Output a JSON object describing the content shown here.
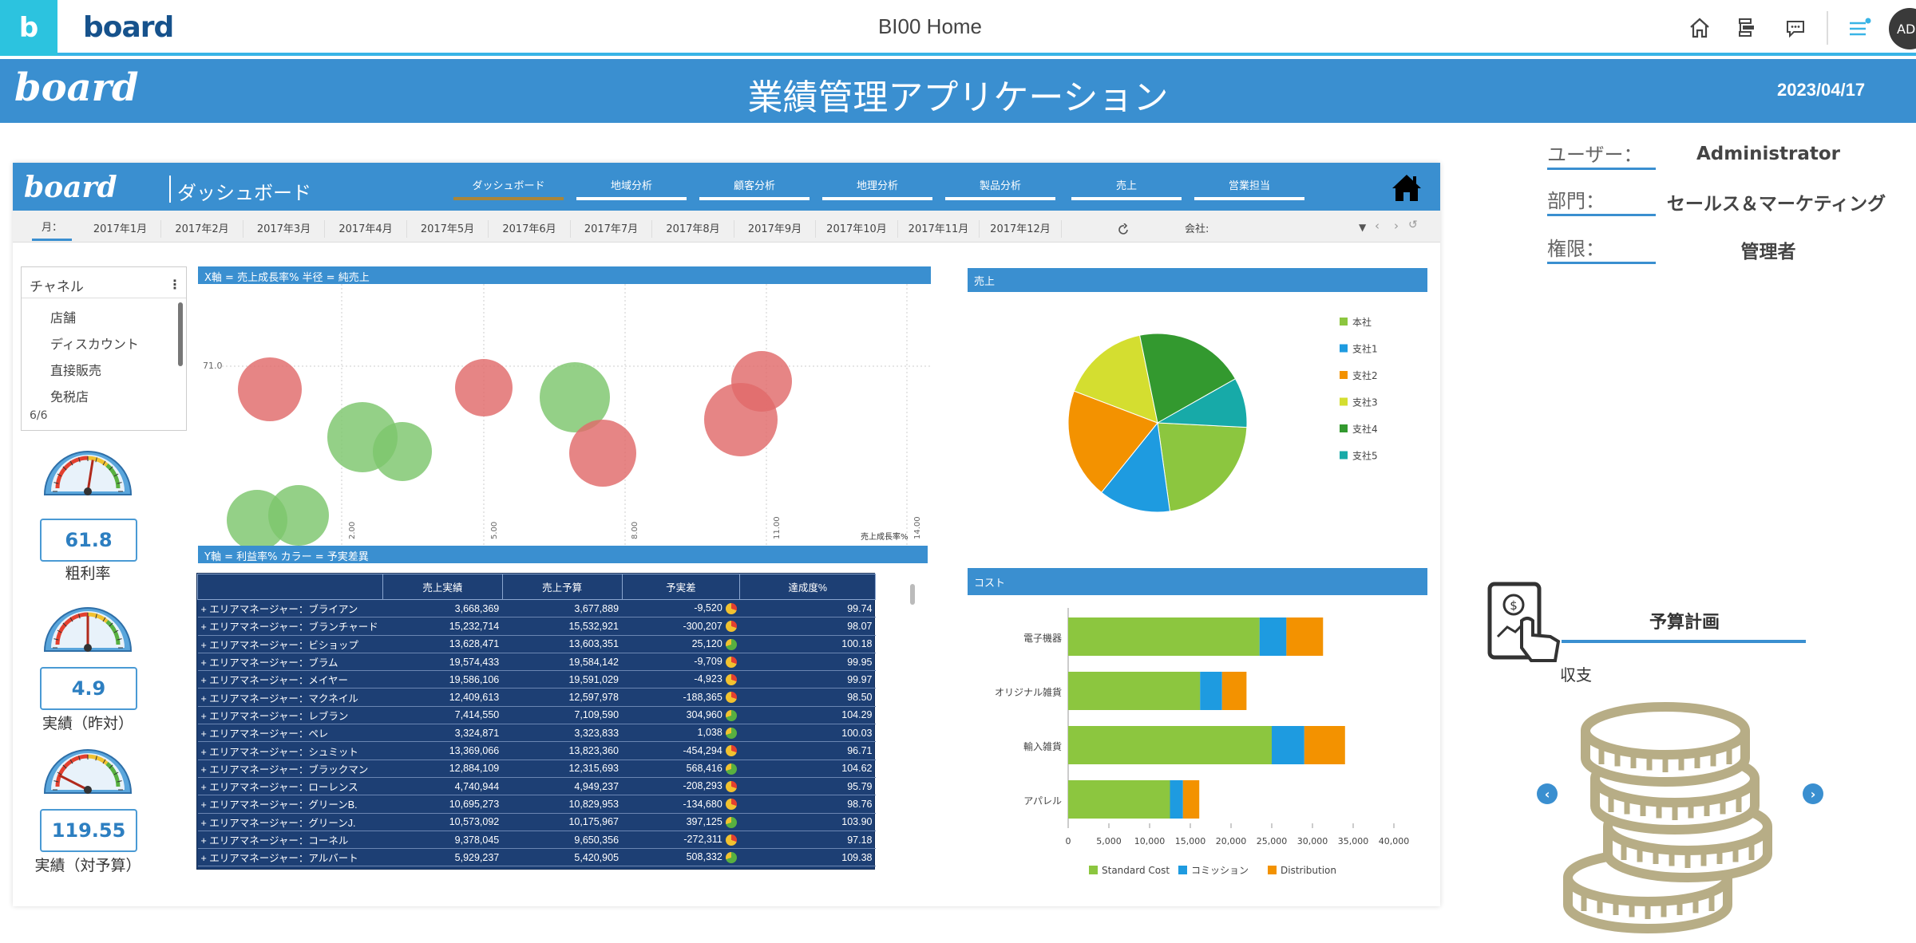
{
  "topbar": {
    "logo_letter": "b",
    "brand": "board",
    "title": "BI00 Home",
    "avatar": "AD",
    "icons": [
      "home-icon",
      "tree-icon",
      "chat-icon",
      "menu-icon"
    ]
  },
  "header": {
    "logo": "board",
    "title": "業績管理アプリケーション",
    "date": "2023/04/17"
  },
  "user_info": {
    "user_label": "ユーザー：",
    "user_value": "Administrator",
    "dept_label": "部門：",
    "dept_value": "セールス＆マーケティング",
    "role_label": "権限：",
    "role_value": "管理者"
  },
  "dashboard": {
    "logo": "board",
    "title": "ダッシュボード",
    "tabs": [
      "ダッシュボード",
      "地域分析",
      "顧客分析",
      "地理分析",
      "製品分析",
      "売上",
      "営業担当"
    ],
    "active_tab": 0,
    "month_label": "月：",
    "months": [
      "2017年1月",
      "2017年2月",
      "2017年3月",
      "2017年4月",
      "2017年5月",
      "2017年6月",
      "2017年7月",
      "2017年8月",
      "2017年9月",
      "2017年10月",
      "2017年11月",
      "2017年12月"
    ],
    "company_label": "会社:"
  },
  "channel": {
    "title": "チャネル",
    "items": [
      "店舗",
      "ディスカウント",
      "直接販売",
      "免税店"
    ],
    "count": "6/6"
  },
  "kpis": [
    {
      "value": "61.8",
      "label": "粗利率",
      "gauge_level": 0.55
    },
    {
      "value": "4.9",
      "label": "実績（昨対）",
      "gauge_level": 0.5
    },
    {
      "value": "119.55",
      "label": "実績（対予算）",
      "gauge_level": 0.15
    }
  ],
  "bubble": {
    "header": "X軸 = 売上成長率% 半径 = 純売上",
    "footer": "Y軸 = 利益率% カラー = 予実差異",
    "ref_label": "71.0",
    "x_ticks": [
      "2.00",
      "5.00",
      "8.00",
      "11.00",
      "14.00"
    ],
    "x_axis_label": "売上成長率%"
  },
  "table": {
    "headers": [
      "",
      "売上実績",
      "売上予算",
      "予実差",
      "達成度%"
    ],
    "rows": [
      [
        "+ エリアマネージャー：ブライアン",
        "3,668,369",
        "3,677,889",
        "-9,520",
        "99.74"
      ],
      [
        "+ エリアマネージャー：ブランチャード",
        "15,232,714",
        "15,532,921",
        "-300,207",
        "98.07"
      ],
      [
        "+ エリアマネージャー：ビショップ",
        "13,628,471",
        "13,603,351",
        "25,120",
        "100.18"
      ],
      [
        "+ エリアマネージャー：ブラム",
        "19,574,433",
        "19,584,142",
        "-9,709",
        "99.95"
      ],
      [
        "+ エリアマネージャー：メイヤー",
        "19,586,106",
        "19,591,029",
        "-4,923",
        "99.97"
      ],
      [
        "+ エリアマネージャー：マクネイル",
        "12,409,613",
        "12,597,978",
        "-188,365",
        "98.50"
      ],
      [
        "+ エリアマネージャー：レブラン",
        "7,414,550",
        "7,109,590",
        "304,960",
        "104.29"
      ],
      [
        "+ エリアマネージャー：ペレ",
        "3,324,871",
        "3,323,833",
        "1,038",
        "100.03"
      ],
      [
        "+ エリアマネージャー：シュミット",
        "13,369,066",
        "13,823,360",
        "-454,294",
        "96.71"
      ],
      [
        "+ エリアマネージャー：ブラックマン",
        "12,884,109",
        "12,315,693",
        "568,416",
        "104.62"
      ],
      [
        "+ エリアマネージャー：ローレンス",
        "4,740,944",
        "4,949,237",
        "-208,293",
        "95.79"
      ],
      [
        "+ エリアマネージャー：グリーンB.",
        "10,695,273",
        "10,829,953",
        "-134,680",
        "98.76"
      ],
      [
        "+ エリアマネージャー：グリーンJ.",
        "10,573,092",
        "10,175,967",
        "397,125",
        "103.90"
      ],
      [
        "+ エリアマネージャー：コーネル",
        "9,378,045",
        "9,650,356",
        "-272,311",
        "97.18"
      ],
      [
        "+ エリアマネージャー：アルバート",
        "5,929,237",
        "5,420,905",
        "508,332",
        "109.38"
      ]
    ]
  },
  "chart_data": [
    {
      "type": "pie",
      "title": "売上",
      "categories": [
        "本社",
        "支社1",
        "支社2",
        "支社3",
        "支社4",
        "支社5"
      ],
      "values": [
        22,
        13,
        20,
        16,
        20,
        9
      ],
      "colors": [
        "#8cc63f",
        "#1e9be0",
        "#f39200",
        "#d4de30",
        "#33992f",
        "#17aaa8"
      ],
      "legend": "right"
    },
    {
      "type": "bar",
      "orientation": "horizontal",
      "stacked": true,
      "title": "コスト",
      "categories": [
        "電子機器",
        "オリジナル雑貨",
        "輸入雑貨",
        "アパレル"
      ],
      "series": [
        {
          "name": "Standard Cost",
          "values": [
            23500,
            16200,
            25000,
            12500
          ],
          "color": "#8cc63f"
        },
        {
          "name": "コミッション",
          "values": [
            3300,
            2700,
            4000,
            1600
          ],
          "color": "#1e9be0"
        },
        {
          "name": "Distribution",
          "values": [
            4500,
            3000,
            5000,
            2000
          ],
          "color": "#f39200"
        }
      ],
      "xlim": [
        0,
        40000
      ],
      "x_ticks": [
        "0",
        "5,000",
        "10,000",
        "15,000",
        "20,000",
        "25,000",
        "30,000",
        "35,000",
        "40,000"
      ],
      "legend": "bottom"
    }
  ],
  "budget": {
    "title": "予算計画",
    "subtitle": "収支"
  },
  "colors": {
    "accent": "#3a8fd0",
    "cyan": "#2cc3df",
    "table_bg": "#1d3f74",
    "bubble_red": "#e06a6a",
    "bubble_green": "#7cc66c"
  }
}
